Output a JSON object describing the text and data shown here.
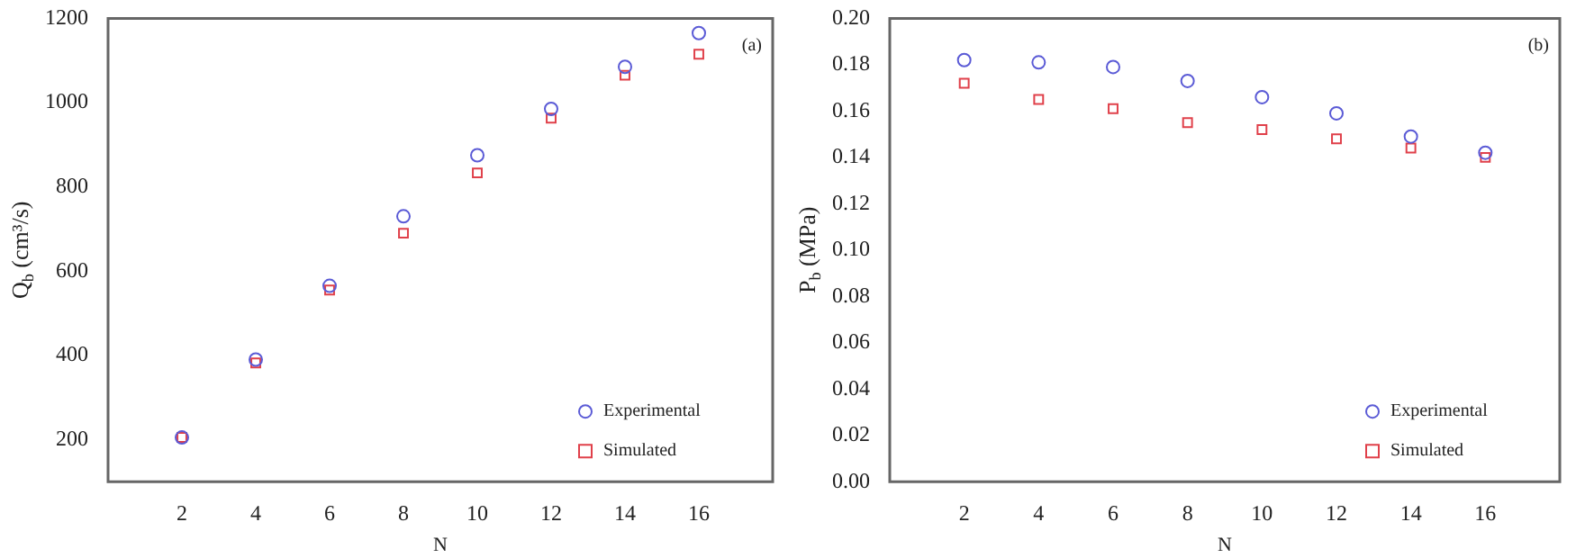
{
  "chart_data": [
    {
      "type": "scatter",
      "xlabel": "N",
      "ylabel": "Q$_{b}$ (cm³/s)",
      "annotations": [
        "(a)"
      ],
      "x": [
        2,
        4,
        6,
        8,
        10,
        12,
        14,
        16
      ],
      "series": [
        {
          "name": "Experimental",
          "color": "#5b5bd6",
          "marker": "circle",
          "values": [
            205,
            390,
            565,
            730,
            875,
            985,
            1085,
            1165
          ]
        },
        {
          "name": "Simulated",
          "color": "#e0404a",
          "marker": "square",
          "values": [
            205,
            382,
            555,
            690,
            833,
            963,
            1065,
            1115
          ]
        }
      ],
      "xlim": [
        0,
        18
      ],
      "xticks": [
        2,
        4,
        6,
        8,
        10,
        12,
        14,
        16
      ],
      "ylim": [
        100,
        1200
      ],
      "yticks": [
        200,
        400,
        600,
        800,
        1000,
        1200
      ],
      "grid": false,
      "legend": "bottom right"
    },
    {
      "type": "scatter",
      "xlabel": "N",
      "ylabel": "P$_{b}$ (MPa)",
      "annotations": [
        "(b)"
      ],
      "x": [
        2,
        4,
        6,
        8,
        10,
        12,
        14,
        16
      ],
      "series": [
        {
          "name": "Experimental",
          "color": "#5b5bd6",
          "marker": "circle",
          "values": [
            0.182,
            0.181,
            0.179,
            0.173,
            0.166,
            0.159,
            0.149,
            0.142
          ]
        },
        {
          "name": "Simulated",
          "color": "#e0404a",
          "marker": "square",
          "values": [
            0.172,
            0.165,
            0.161,
            0.155,
            0.152,
            0.148,
            0.144,
            0.14
          ]
        }
      ],
      "xlim": [
        0,
        18
      ],
      "xticks": [
        2,
        4,
        6,
        8,
        10,
        12,
        14,
        16
      ],
      "ylim": [
        0,
        0.2
      ],
      "yticks": [
        {
          "value": 0,
          "label": "0.00"
        },
        0.02,
        0.04,
        0.06,
        0.08,
        {
          "value": 0.1,
          "label": "0.10"
        },
        0.12,
        0.14,
        0.16,
        0.18,
        {
          "value": 0.2,
          "label": "0.20"
        }
      ],
      "grid": false,
      "legend": "bottom right"
    }
  ]
}
